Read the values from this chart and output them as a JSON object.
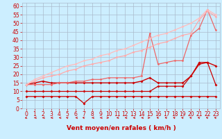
{
  "xlabel": "Vent moyen/en rafales ( km/h )",
  "bg_color": "#cceeff",
  "grid_color": "#aabbcc",
  "xlim": [
    -0.5,
    23.5
  ],
  "ylim": [
    0,
    62
  ],
  "yticks": [
    0,
    5,
    10,
    15,
    20,
    25,
    30,
    35,
    40,
    45,
    50,
    55,
    60
  ],
  "xticks": [
    0,
    1,
    2,
    3,
    4,
    5,
    6,
    7,
    8,
    9,
    10,
    11,
    12,
    13,
    14,
    15,
    16,
    17,
    18,
    19,
    20,
    21,
    22,
    23
  ],
  "lines": [
    {
      "x": [
        0,
        1,
        2,
        3,
        4,
        5,
        6,
        7,
        8,
        9,
        10,
        11,
        12,
        13,
        14,
        15,
        16,
        17,
        18,
        19,
        20,
        21,
        22,
        23
      ],
      "y": [
        7,
        7,
        7,
        7,
        7,
        7,
        7,
        3,
        7,
        7,
        7,
        7,
        7,
        7,
        7,
        7,
        7,
        7,
        7,
        7,
        7,
        7,
        7,
        7
      ],
      "color": "#cc0000",
      "lw": 0.9,
      "marker": "D",
      "ms": 2.0
    },
    {
      "x": [
        0,
        1,
        2,
        3,
        4,
        5,
        6,
        7,
        8,
        9,
        10,
        11,
        12,
        13,
        14,
        15,
        16,
        17,
        18,
        19,
        20,
        21,
        22,
        23
      ],
      "y": [
        10,
        10,
        10,
        10,
        10,
        10,
        10,
        10,
        10,
        10,
        10,
        10,
        10,
        10,
        10,
        10,
        13,
        13,
        13,
        13,
        19,
        27,
        27,
        14
      ],
      "color": "#cc0000",
      "lw": 0.9,
      "marker": "D",
      "ms": 2.0
    },
    {
      "x": [
        0,
        1,
        2,
        3,
        4,
        5,
        6,
        7,
        8,
        9,
        10,
        11,
        12,
        13,
        14,
        15,
        16,
        17,
        18,
        19,
        20,
        21,
        22,
        23
      ],
      "y": [
        14,
        15,
        16,
        15,
        15,
        15,
        15,
        15,
        15,
        15,
        15,
        15,
        15,
        15,
        16,
        18,
        15,
        15,
        15,
        15,
        19,
        26,
        27,
        25
      ],
      "color": "#cc0000",
      "lw": 1.0,
      "marker": "D",
      "ms": 2.0
    },
    {
      "x": [
        0,
        1,
        2,
        3,
        4,
        5,
        6,
        7,
        8,
        9,
        10,
        11,
        12,
        13,
        14,
        15,
        16,
        17,
        18,
        19,
        20,
        21,
        22,
        23
      ],
      "y": [
        14,
        14,
        14,
        14,
        15,
        15,
        16,
        16,
        17,
        17,
        18,
        18,
        18,
        18,
        19,
        44,
        26,
        27,
        28,
        28,
        43,
        47,
        58,
        46
      ],
      "color": "#ee6666",
      "lw": 0.9,
      "marker": "o",
      "ms": 2.0
    },
    {
      "x": [
        0,
        1,
        2,
        3,
        4,
        5,
        6,
        7,
        8,
        9,
        10,
        11,
        12,
        13,
        14,
        15,
        16,
        17,
        18,
        19,
        20,
        21,
        22,
        23
      ],
      "y": [
        14,
        16,
        18,
        19,
        20,
        22,
        23,
        25,
        26,
        27,
        28,
        30,
        31,
        33,
        34,
        36,
        38,
        39,
        41,
        43,
        44,
        52,
        57,
        54
      ],
      "color": "#ffaaaa",
      "lw": 0.9,
      "marker": "o",
      "ms": 2.0
    },
    {
      "x": [
        0,
        1,
        2,
        3,
        4,
        5,
        6,
        7,
        8,
        9,
        10,
        11,
        12,
        13,
        14,
        15,
        16,
        17,
        18,
        19,
        20,
        21,
        22,
        23
      ],
      "y": [
        14,
        17,
        19,
        21,
        23,
        25,
        26,
        28,
        29,
        31,
        32,
        34,
        35,
        37,
        39,
        41,
        43,
        44,
        46,
        48,
        50,
        53,
        58,
        55
      ],
      "color": "#ffbbbb",
      "lw": 0.9,
      "marker": "o",
      "ms": 2.0
    }
  ],
  "wind_dirs": [
    225,
    270,
    270,
    270,
    270,
    315,
    270,
    315,
    270,
    270,
    90,
    270,
    270,
    270,
    270,
    90,
    315,
    315,
    315,
    315,
    315,
    315,
    315,
    315
  ],
  "color_dark": "#cc0000",
  "tick_color": "#cc0000",
  "tick_fontsize": 5.5,
  "xlabel_fontsize": 6.5,
  "xlabel_fontweight": "bold"
}
